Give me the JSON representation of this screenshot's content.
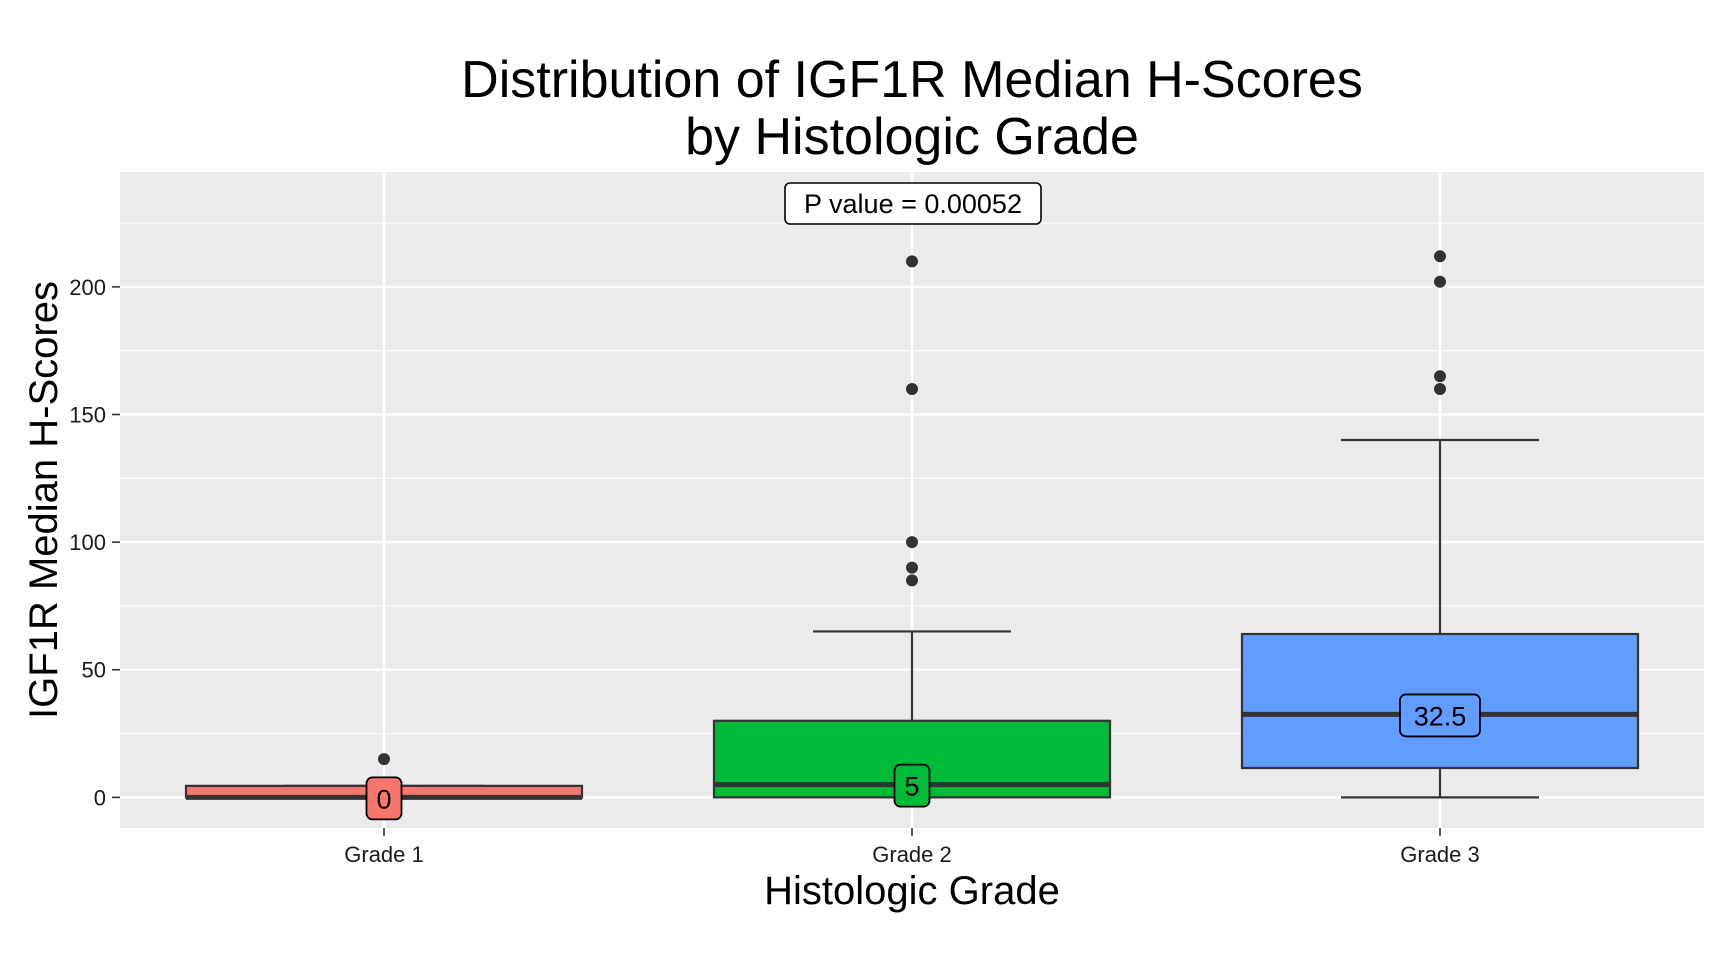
{
  "chart_data": {
    "type": "boxplot",
    "title_line1": "Distribution of IGF1R Median H-Scores",
    "title_line2": "by Histologic Grade",
    "xlabel": "Histologic Grade",
    "ylabel": "IGF1R Median H-Scores",
    "ylim": [
      -12,
      245
    ],
    "yticks": [
      0,
      50,
      100,
      150,
      200
    ],
    "ytick_labels": [
      "0",
      "50",
      "100",
      "150",
      "200"
    ],
    "grid": true,
    "background": "#ebebeb",
    "annotation": "P value = 0.00052",
    "categories": [
      "Grade 1",
      "Grade 2",
      "Grade 3"
    ],
    "boxes": [
      {
        "category": "Grade 1",
        "min": 0,
        "q1": 0,
        "median": 0,
        "q3": 4.5,
        "max": 4.5,
        "outliers": [
          15
        ],
        "median_label": "0",
        "color": "#f8766d"
      },
      {
        "category": "Grade 2",
        "min": 0,
        "q1": 0,
        "median": 5,
        "q3": 30,
        "max": 65,
        "outliers": [
          85,
          90,
          100,
          160,
          210
        ],
        "median_label": "5",
        "color": "#00ba38"
      },
      {
        "category": "Grade 3",
        "min": 0,
        "q1": 11.5,
        "median": 32.5,
        "q3": 64,
        "max": 140,
        "outliers": [
          160,
          165,
          202,
          212
        ],
        "median_label": "32.5",
        "color": "#619cff"
      }
    ]
  }
}
